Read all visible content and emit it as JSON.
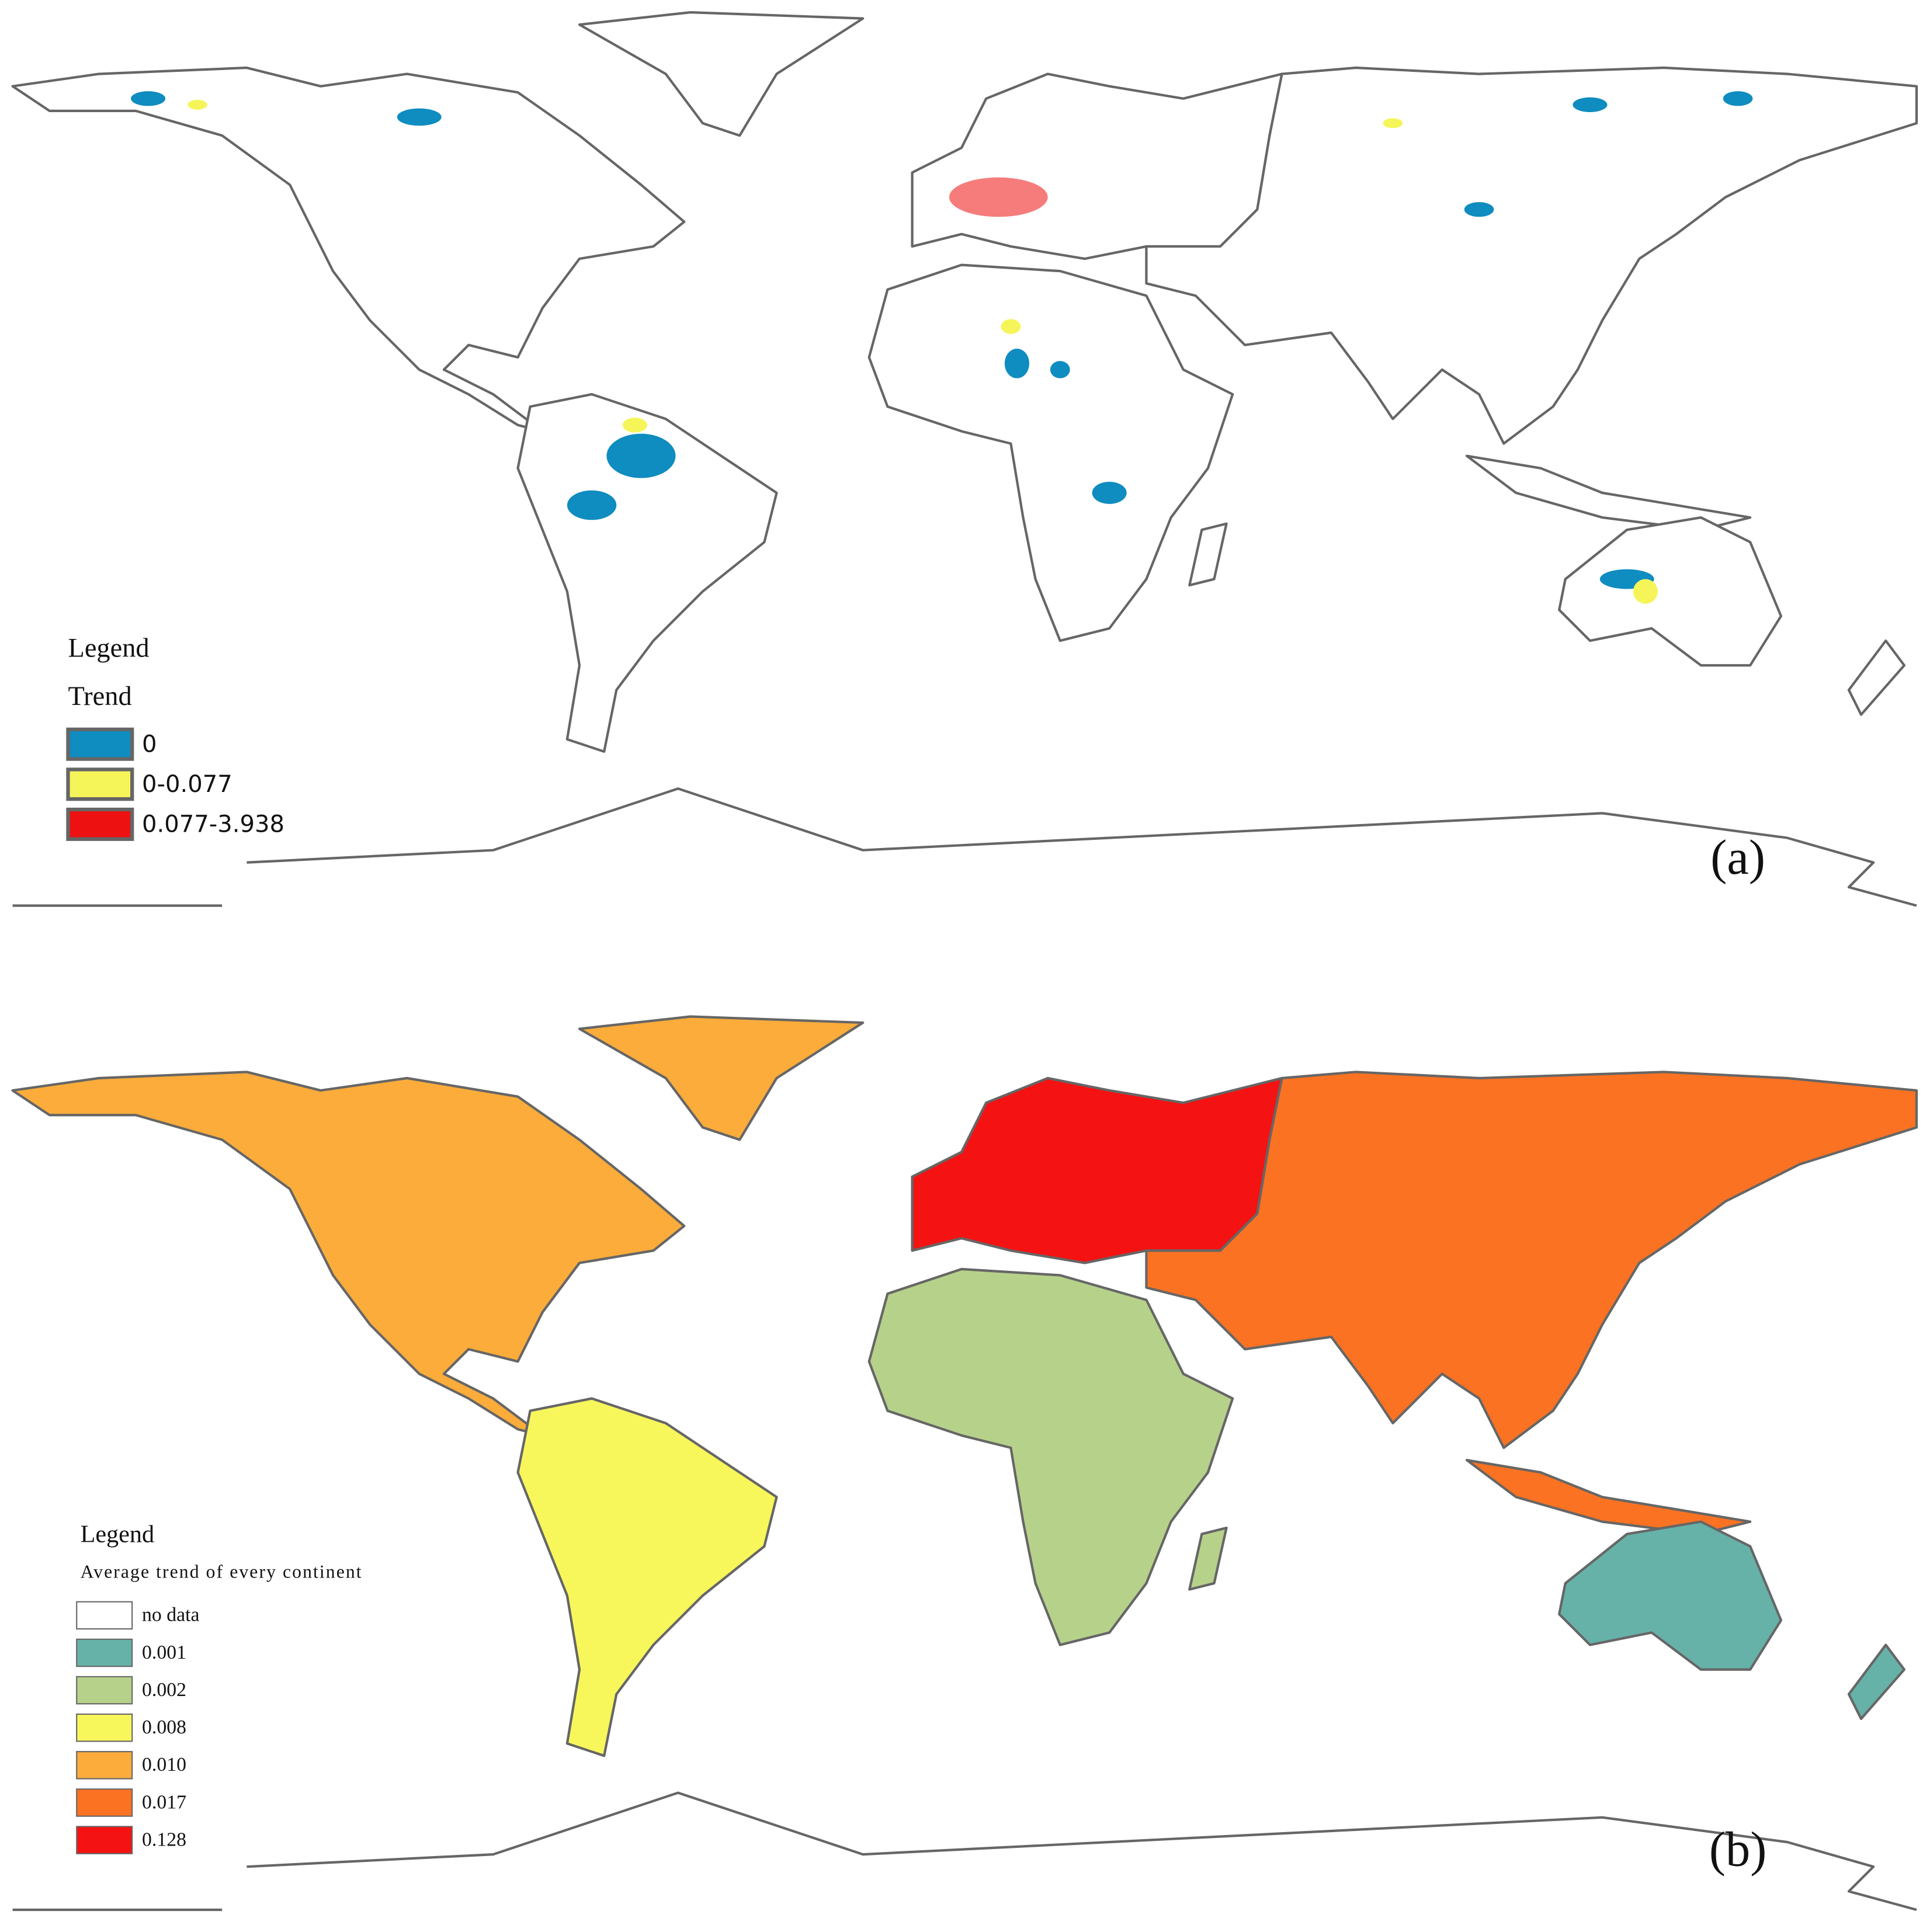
{
  "panels": [
    {
      "label": "(a)",
      "legend": {
        "title": "Legend",
        "subtitle": "Trend",
        "items": [
          {
            "label": "0",
            "color": "#0f8cc0"
          },
          {
            "label": "0-0.077",
            "color": "#f5f55a"
          },
          {
            "label": "0.077-3.938",
            "color": "#ee1111"
          }
        ]
      }
    },
    {
      "label": "(b)",
      "legend": {
        "title": "Legend",
        "subtitle": "Average trend  of every continent",
        "items": [
          {
            "label": "no data",
            "color": "#ffffff"
          },
          {
            "label": "0.001",
            "color": "#66b2a8"
          },
          {
            "label": "0.002",
            "color": "#b6d28a"
          },
          {
            "label": "0.008",
            "color": "#f7f75c"
          },
          {
            "label": "0.010",
            "color": "#fbac3a"
          },
          {
            "label": "0.017",
            "color": "#fb7222"
          },
          {
            "label": "0.128",
            "color": "#f51212"
          }
        ]
      }
    }
  ]
}
